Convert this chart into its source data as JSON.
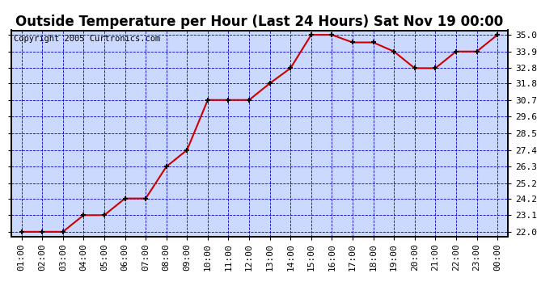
{
  "title": "Outside Temperature per Hour (Last 24 Hours) Sat Nov 19 00:00",
  "copyright_text": "Copyright 2005 Curtronics.com",
  "hours": [
    "01:00",
    "02:00",
    "03:00",
    "04:00",
    "05:00",
    "06:00",
    "07:00",
    "08:00",
    "09:00",
    "10:00",
    "11:00",
    "12:00",
    "13:00",
    "14:00",
    "15:00",
    "16:00",
    "17:00",
    "18:00",
    "19:00",
    "20:00",
    "21:00",
    "22:00",
    "23:00",
    "00:00"
  ],
  "temperatures": [
    22.0,
    22.0,
    22.0,
    23.1,
    23.1,
    24.2,
    24.2,
    26.3,
    27.4,
    30.7,
    30.7,
    30.7,
    31.8,
    32.8,
    35.0,
    35.0,
    34.5,
    34.5,
    33.9,
    32.8,
    32.8,
    33.9,
    33.9,
    35.0
  ],
  "y_ticks": [
    22.0,
    23.1,
    24.2,
    25.2,
    26.3,
    27.4,
    28.5,
    29.6,
    30.7,
    31.8,
    32.8,
    33.9,
    35.0
  ],
  "y_tick_labels": [
    "22.0",
    "23.1",
    "24.2",
    "25.2",
    "26.3",
    "27.4",
    "28.5",
    "29.6",
    "30.7",
    "31.8",
    "32.8",
    "33.9",
    "35.0"
  ],
  "ylim": [
    21.7,
    35.3
  ],
  "line_color": "#cc0000",
  "marker_color": "#000000",
  "fig_bg_color": "#ffffff",
  "plot_bg_color": "#ccd9ff",
  "grid_color": "#0000cc",
  "title_fontsize": 12,
  "copyright_fontsize": 7.5,
  "tick_fontsize": 8,
  "border_color": "#000000"
}
